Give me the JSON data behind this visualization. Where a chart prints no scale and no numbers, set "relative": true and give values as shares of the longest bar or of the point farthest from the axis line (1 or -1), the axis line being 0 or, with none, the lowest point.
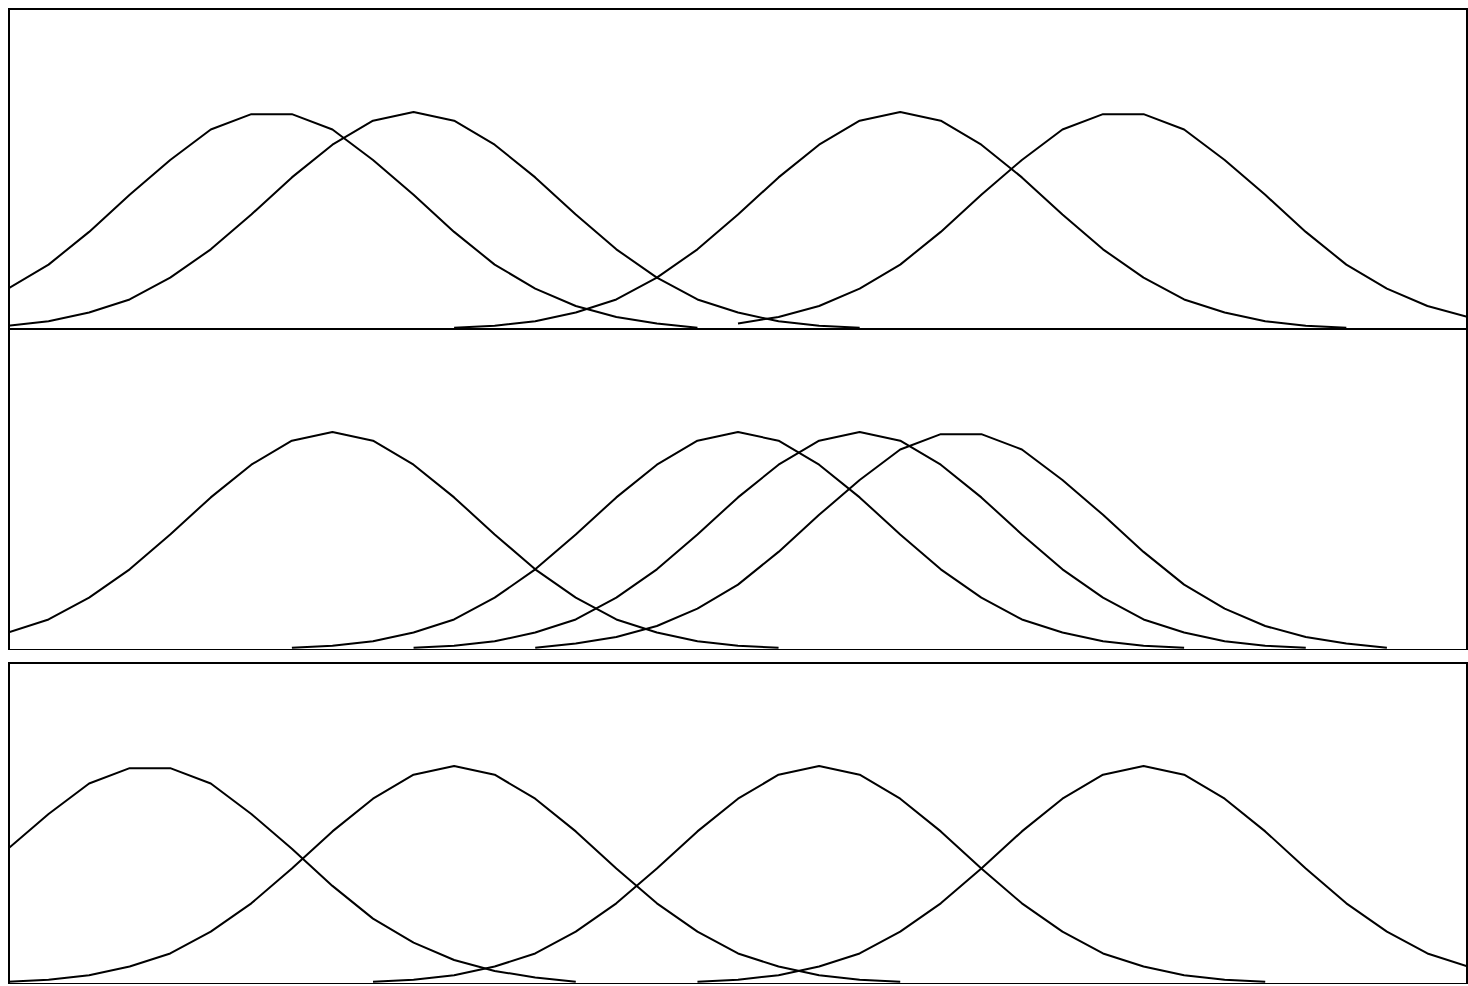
{
  "chart_data": [
    {
      "type": "line",
      "relative": true,
      "categories": [
        null,
        null,
        null,
        null,
        null,
        null,
        null,
        null,
        null,
        null,
        null,
        null,
        null,
        null,
        null,
        null,
        null,
        null,
        null,
        null,
        null,
        null,
        null,
        null,
        null,
        null,
        null,
        null,
        null,
        null,
        null,
        null,
        null,
        null,
        null,
        null,
        null
      ],
      "series": [
        {
          "color": "#000000",
          "values": [
            0.19,
            0.3,
            0.45,
            0.62,
            0.78,
            0.92,
            0.99,
            0.99,
            0.92,
            0.78,
            0.62,
            0.45,
            0.3,
            0.19,
            0.11,
            0.06,
            0.03,
            0.01,
            null,
            null,
            null,
            null,
            null,
            null,
            null,
            null,
            null,
            null,
            null,
            null,
            null,
            null,
            null,
            null,
            null,
            null,
            null
          ]
        },
        {
          "color": "#000000",
          "values": [
            0.02,
            0.04,
            0.08,
            0.14,
            0.24,
            0.37,
            0.53,
            0.7,
            0.85,
            0.96,
            1,
            0.96,
            0.85,
            0.7,
            0.53,
            0.37,
            0.24,
            0.14,
            0.08,
            0.04,
            0.02,
            0.01,
            null,
            null,
            null,
            null,
            null,
            null,
            null,
            null,
            null,
            null,
            null,
            null,
            null,
            null,
            null
          ]
        },
        {
          "color": "#000000",
          "values": [
            null,
            null,
            null,
            null,
            null,
            null,
            null,
            null,
            null,
            null,
            null,
            0.01,
            0.02,
            0.04,
            0.08,
            0.14,
            0.24,
            0.37,
            0.53,
            0.7,
            0.85,
            0.96,
            1,
            0.96,
            0.85,
            0.7,
            0.53,
            0.37,
            0.24,
            0.14,
            0.08,
            0.04,
            0.02,
            0.01,
            null,
            null,
            null
          ]
        },
        {
          "color": "#000000",
          "values": [
            null,
            null,
            null,
            null,
            null,
            null,
            null,
            null,
            null,
            null,
            null,
            null,
            null,
            null,
            null,
            null,
            null,
            null,
            0.03,
            0.06,
            0.11,
            0.19,
            0.3,
            0.45,
            0.62,
            0.78,
            0.92,
            0.99,
            0.99,
            0.92,
            0.78,
            0.62,
            0.45,
            0.3,
            0.19,
            0.11,
            0.06
          ]
        }
      ]
    },
    {
      "type": "line",
      "relative": true,
      "categories": [
        null,
        null,
        null,
        null,
        null,
        null,
        null,
        null,
        null,
        null,
        null,
        null,
        null,
        null,
        null,
        null,
        null,
        null,
        null,
        null,
        null,
        null,
        null,
        null,
        null,
        null,
        null,
        null,
        null,
        null,
        null,
        null,
        null,
        null,
        null,
        null,
        null
      ],
      "series": [
        {
          "color": "#000000",
          "values": [
            0.08,
            0.14,
            0.24,
            0.37,
            0.53,
            0.7,
            0.85,
            0.96,
            1,
            0.96,
            0.85,
            0.7,
            0.53,
            0.37,
            0.24,
            0.14,
            0.08,
            0.04,
            0.02,
            0.01,
            null,
            null,
            null,
            null,
            null,
            null,
            null,
            null,
            null,
            null,
            null,
            null,
            null,
            null,
            null,
            null,
            null
          ]
        },
        {
          "color": "#000000",
          "values": [
            null,
            null,
            null,
            null,
            null,
            null,
            null,
            0.01,
            0.02,
            0.04,
            0.08,
            0.14,
            0.24,
            0.37,
            0.53,
            0.7,
            0.85,
            0.96,
            1,
            0.96,
            0.85,
            0.7,
            0.53,
            0.37,
            0.24,
            0.14,
            0.08,
            0.04,
            0.02,
            0.01,
            null,
            null,
            null,
            null,
            null,
            null,
            null
          ]
        },
        {
          "color": "#000000",
          "values": [
            null,
            null,
            null,
            null,
            null,
            null,
            null,
            null,
            null,
            null,
            0.01,
            0.02,
            0.04,
            0.08,
            0.14,
            0.24,
            0.37,
            0.53,
            0.7,
            0.85,
            0.96,
            1,
            0.96,
            0.85,
            0.7,
            0.53,
            0.37,
            0.24,
            0.14,
            0.08,
            0.04,
            0.02,
            0.01,
            null,
            null,
            null,
            null
          ]
        },
        {
          "color": "#000000",
          "values": [
            null,
            null,
            null,
            null,
            null,
            null,
            null,
            null,
            null,
            null,
            null,
            null,
            null,
            0.01,
            0.03,
            0.06,
            0.11,
            0.19,
            0.3,
            0.45,
            0.62,
            0.78,
            0.92,
            0.99,
            0.99,
            0.92,
            0.78,
            0.62,
            0.45,
            0.3,
            0.19,
            0.11,
            0.06,
            0.03,
            0.01,
            null,
            null
          ]
        }
      ]
    },
    {
      "type": "line",
      "relative": true,
      "categories": [
        null,
        null,
        null,
        null,
        null,
        null,
        null,
        null,
        null,
        null,
        null,
        null,
        null,
        null,
        null,
        null,
        null,
        null,
        null,
        null,
        null,
        null,
        null,
        null,
        null,
        null,
        null,
        null,
        null,
        null,
        null,
        null,
        null,
        null,
        null,
        null,
        null
      ],
      "series": [
        {
          "color": "#000000",
          "values": [
            0.62,
            0.78,
            0.92,
            0.99,
            0.99,
            0.92,
            0.78,
            0.62,
            0.45,
            0.3,
            0.19,
            0.11,
            0.06,
            0.03,
            0.01,
            null,
            null,
            null,
            null,
            null,
            null,
            null,
            null,
            null,
            null,
            null,
            null,
            null,
            null,
            null,
            null,
            null,
            null,
            null,
            null,
            null,
            null
          ]
        },
        {
          "color": "#000000",
          "values": [
            0.01,
            0.02,
            0.04,
            0.08,
            0.14,
            0.24,
            0.37,
            0.53,
            0.7,
            0.85,
            0.96,
            1,
            0.96,
            0.85,
            0.7,
            0.53,
            0.37,
            0.24,
            0.14,
            0.08,
            0.04,
            0.02,
            0.01,
            null,
            null,
            null,
            null,
            null,
            null,
            null,
            null,
            null,
            null,
            null,
            null,
            null,
            null
          ]
        },
        {
          "color": "#000000",
          "values": [
            null,
            null,
            null,
            null,
            null,
            null,
            null,
            null,
            null,
            0.01,
            0.02,
            0.04,
            0.08,
            0.14,
            0.24,
            0.37,
            0.53,
            0.7,
            0.85,
            0.96,
            1,
            0.96,
            0.85,
            0.7,
            0.53,
            0.37,
            0.24,
            0.14,
            0.08,
            0.04,
            0.02,
            0.01,
            null,
            null,
            null,
            null,
            null
          ]
        },
        {
          "color": "#000000",
          "values": [
            null,
            null,
            null,
            null,
            null,
            null,
            null,
            null,
            null,
            null,
            null,
            null,
            null,
            null,
            null,
            null,
            null,
            0.01,
            0.02,
            0.04,
            0.08,
            0.14,
            0.24,
            0.37,
            0.53,
            0.7,
            0.85,
            0.96,
            1,
            0.96,
            0.85,
            0.7,
            0.53,
            0.37,
            0.24,
            0.14,
            0.08
          ]
        }
      ]
    }
  ]
}
